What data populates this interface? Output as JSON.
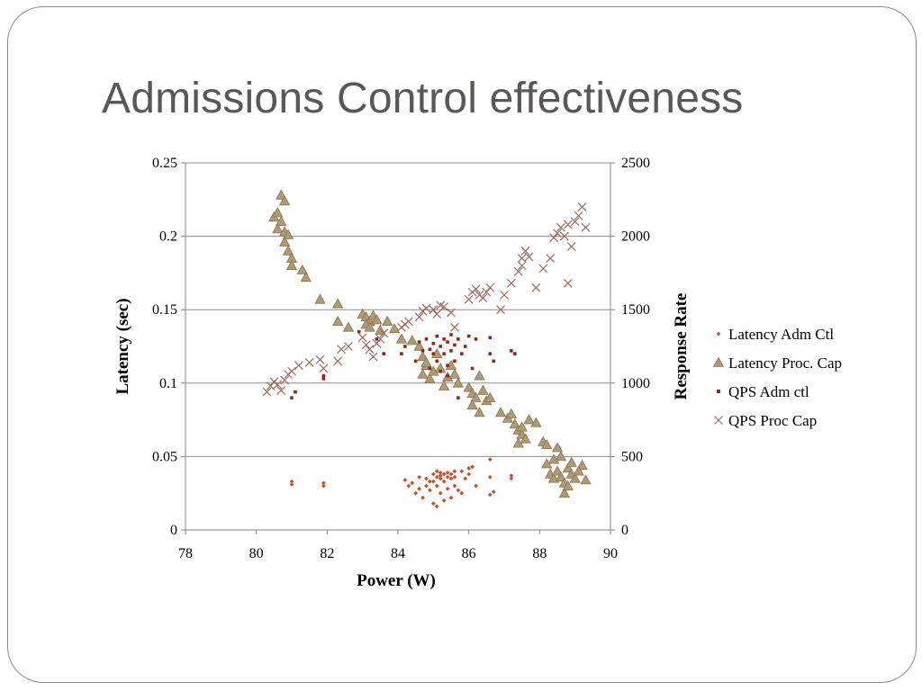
{
  "slide": {
    "title": "Admissions Control effectiveness"
  },
  "colors": {
    "latency_adm": "#c8502a",
    "latency_proc": "#ad9b75",
    "latency_proc_stroke": "#8a7550",
    "qps_adm": "#8b2a1c",
    "qps_proc": "#9c6b60",
    "grid": "#8c8c8c",
    "title": "#5b5756"
  },
  "chart_data": {
    "type": "scatter",
    "xlabel": "Power (W)",
    "ylabel": "Latency (sec)",
    "y2label": "Response Rate",
    "xlim": [
      78,
      90
    ],
    "ylim": [
      0,
      0.25
    ],
    "y2lim": [
      0,
      2500
    ],
    "xticks": [
      "78",
      "80",
      "82",
      "84",
      "86",
      "88",
      "90"
    ],
    "yticks": [
      "0",
      "0.05",
      "0.1",
      "0.15",
      "0.2",
      "0.25"
    ],
    "y2ticks": [
      "0",
      "500",
      "1000",
      "1500",
      "2000",
      "2500"
    ],
    "grid": "horizontal",
    "legend_position": "right",
    "series": [
      {
        "name": "Latency Adm Ctl",
        "axis": "left",
        "marker": "diamond",
        "points": [
          [
            81.0,
            0.031
          ],
          [
            81.0,
            0.033
          ],
          [
            81.9,
            0.03
          ],
          [
            81.9,
            0.032
          ],
          [
            84.2,
            0.034
          ],
          [
            84.3,
            0.03
          ],
          [
            84.4,
            0.032
          ],
          [
            84.5,
            0.025
          ],
          [
            84.6,
            0.028
          ],
          [
            84.7,
            0.022
          ],
          [
            84.8,
            0.035
          ],
          [
            84.8,
            0.03
          ],
          [
            84.9,
            0.027
          ],
          [
            85.0,
            0.038
          ],
          [
            85.0,
            0.033
          ],
          [
            85.0,
            0.018
          ],
          [
            85.1,
            0.036
          ],
          [
            85.1,
            0.03
          ],
          [
            85.1,
            0.04
          ],
          [
            85.2,
            0.037
          ],
          [
            85.2,
            0.035
          ],
          [
            85.2,
            0.025
          ],
          [
            85.3,
            0.038
          ],
          [
            85.3,
            0.033
          ],
          [
            85.3,
            0.02
          ],
          [
            85.4,
            0.036
          ],
          [
            85.4,
            0.039
          ],
          [
            85.4,
            0.028
          ],
          [
            85.5,
            0.038
          ],
          [
            85.5,
            0.035
          ],
          [
            85.5,
            0.022
          ],
          [
            85.6,
            0.036
          ],
          [
            85.6,
            0.03
          ],
          [
            85.7,
            0.027
          ],
          [
            85.8,
            0.04
          ],
          [
            85.8,
            0.025
          ],
          [
            85.9,
            0.035
          ],
          [
            86.0,
            0.042
          ],
          [
            86.0,
            0.038
          ],
          [
            86.1,
            0.043
          ],
          [
            86.2,
            0.03
          ],
          [
            86.6,
            0.048
          ],
          [
            86.6,
            0.036
          ],
          [
            86.6,
            0.024
          ],
          [
            86.7,
            0.026
          ],
          [
            87.2,
            0.035
          ],
          [
            87.2,
            0.037
          ],
          [
            85.1,
            0.016
          ],
          [
            84.9,
            0.033
          ],
          [
            85.6,
            0.04
          ],
          [
            84.6,
            0.036
          ],
          [
            85.2,
            0.039
          ]
        ]
      },
      {
        "name": "Latency Proc. Cap",
        "axis": "left",
        "marker": "triangle",
        "points": [
          [
            80.7,
            0.228
          ],
          [
            80.8,
            0.224
          ],
          [
            80.5,
            0.213
          ],
          [
            80.6,
            0.216
          ],
          [
            80.7,
            0.21
          ],
          [
            80.6,
            0.205
          ],
          [
            80.8,
            0.203
          ],
          [
            80.9,
            0.201
          ],
          [
            80.8,
            0.196
          ],
          [
            80.9,
            0.19
          ],
          [
            81.0,
            0.185
          ],
          [
            81.0,
            0.18
          ],
          [
            81.3,
            0.177
          ],
          [
            81.4,
            0.172
          ],
          [
            81.8,
            0.157
          ],
          [
            82.3,
            0.154
          ],
          [
            82.3,
            0.142
          ],
          [
            82.6,
            0.138
          ],
          [
            83.0,
            0.147
          ],
          [
            83.1,
            0.145
          ],
          [
            83.2,
            0.142
          ],
          [
            83.3,
            0.146
          ],
          [
            83.1,
            0.14
          ],
          [
            83.2,
            0.138
          ],
          [
            83.4,
            0.143
          ],
          [
            83.5,
            0.136
          ],
          [
            83.7,
            0.142
          ],
          [
            83.9,
            0.137
          ],
          [
            84.1,
            0.13
          ],
          [
            84.4,
            0.129
          ],
          [
            84.6,
            0.125
          ],
          [
            84.7,
            0.118
          ],
          [
            84.8,
            0.112
          ],
          [
            84.7,
            0.106
          ],
          [
            84.9,
            0.103
          ],
          [
            84.8,
            0.114
          ],
          [
            85.0,
            0.108
          ],
          [
            85.1,
            0.12
          ],
          [
            85.2,
            0.11
          ],
          [
            85.3,
            0.098
          ],
          [
            85.4,
            0.104
          ],
          [
            85.5,
            0.112
          ],
          [
            85.6,
            0.106
          ],
          [
            85.7,
            0.1
          ],
          [
            86.0,
            0.097
          ],
          [
            86.1,
            0.093
          ],
          [
            86.2,
            0.09
          ],
          [
            86.3,
            0.105
          ],
          [
            86.4,
            0.095
          ],
          [
            86.5,
            0.088
          ],
          [
            86.6,
            0.09
          ],
          [
            86.1,
            0.085
          ],
          [
            86.3,
            0.08
          ],
          [
            86.9,
            0.08
          ],
          [
            87.1,
            0.076
          ],
          [
            87.2,
            0.079
          ],
          [
            87.3,
            0.072
          ],
          [
            87.4,
            0.068
          ],
          [
            87.5,
            0.065
          ],
          [
            87.6,
            0.062
          ],
          [
            87.7,
            0.075
          ],
          [
            87.5,
            0.07
          ],
          [
            87.4,
            0.059
          ],
          [
            87.9,
            0.073
          ],
          [
            88.1,
            0.06
          ],
          [
            88.2,
            0.058
          ],
          [
            88.5,
            0.056
          ],
          [
            88.4,
            0.048
          ],
          [
            88.6,
            0.05
          ],
          [
            88.3,
            0.038
          ],
          [
            88.4,
            0.035
          ],
          [
            88.5,
            0.04
          ],
          [
            88.6,
            0.036
          ],
          [
            88.7,
            0.032
          ],
          [
            88.8,
            0.042
          ],
          [
            88.9,
            0.038
          ],
          [
            89.0,
            0.035
          ],
          [
            88.7,
            0.025
          ],
          [
            88.9,
            0.046
          ],
          [
            89.2,
            0.044
          ],
          [
            89.3,
            0.034
          ],
          [
            89.1,
            0.04
          ],
          [
            88.2,
            0.045
          ],
          [
            88.8,
            0.03
          ]
        ]
      },
      {
        "name": "QPS Adm ctl",
        "axis": "right",
        "marker": "square",
        "points": [
          [
            81.0,
            900
          ],
          [
            81.1,
            940
          ],
          [
            81.9,
            1050
          ],
          [
            81.9,
            1030
          ],
          [
            82.9,
            1350
          ],
          [
            83.4,
            1300
          ],
          [
            83.6,
            1200
          ],
          [
            84.1,
            1200
          ],
          [
            84.2,
            1250
          ],
          [
            84.5,
            1150
          ],
          [
            84.6,
            1280
          ],
          [
            84.7,
            1220
          ],
          [
            84.8,
            1300
          ],
          [
            84.9,
            1100
          ],
          [
            85.0,
            1200
          ],
          [
            85.0,
            1270
          ],
          [
            85.1,
            1150
          ],
          [
            85.1,
            1320
          ],
          [
            85.2,
            1080
          ],
          [
            85.2,
            1250
          ],
          [
            85.3,
            1200
          ],
          [
            85.3,
            1300
          ],
          [
            85.4,
            1120
          ],
          [
            85.4,
            1280
          ],
          [
            85.5,
            1220
          ],
          [
            85.5,
            1330
          ],
          [
            85.6,
            1150
          ],
          [
            85.6,
            1260
          ],
          [
            85.7,
            1300
          ],
          [
            85.8,
            1200
          ],
          [
            85.9,
            1250
          ],
          [
            86.0,
            1320
          ],
          [
            86.1,
            1100
          ],
          [
            86.2,
            1300
          ],
          [
            86.6,
            1310
          ],
          [
            86.6,
            1200
          ],
          [
            86.7,
            1150
          ],
          [
            87.2,
            1220
          ],
          [
            87.3,
            1200
          ],
          [
            85.4,
            1050
          ],
          [
            84.9,
            1230
          ],
          [
            85.7,
            900
          ]
        ]
      },
      {
        "name": "QPS Proc Cap",
        "axis": "right",
        "marker": "cross",
        "points": [
          [
            80.3,
            940
          ],
          [
            80.4,
            980
          ],
          [
            80.5,
            1010
          ],
          [
            80.6,
            990
          ],
          [
            80.7,
            950
          ],
          [
            80.8,
            1020
          ],
          [
            80.9,
            1060
          ],
          [
            81.0,
            1080
          ],
          [
            81.2,
            1120
          ],
          [
            81.5,
            1140
          ],
          [
            81.8,
            1160
          ],
          [
            81.9,
            1100
          ],
          [
            82.3,
            1150
          ],
          [
            82.4,
            1230
          ],
          [
            82.6,
            1250
          ],
          [
            83.0,
            1310
          ],
          [
            83.1,
            1260
          ],
          [
            83.2,
            1230
          ],
          [
            83.3,
            1180
          ],
          [
            83.4,
            1270
          ],
          [
            83.5,
            1300
          ],
          [
            83.6,
            1340
          ],
          [
            84.1,
            1380
          ],
          [
            84.2,
            1400
          ],
          [
            84.3,
            1420
          ],
          [
            84.6,
            1450
          ],
          [
            84.7,
            1490
          ],
          [
            84.8,
            1510
          ],
          [
            85.0,
            1500
          ],
          [
            85.1,
            1470
          ],
          [
            85.2,
            1530
          ],
          [
            85.3,
            1520
          ],
          [
            85.5,
            1480
          ],
          [
            85.6,
            1380
          ],
          [
            86.0,
            1570
          ],
          [
            86.1,
            1620
          ],
          [
            86.2,
            1640
          ],
          [
            86.3,
            1600
          ],
          [
            86.4,
            1580
          ],
          [
            86.5,
            1620
          ],
          [
            86.6,
            1650
          ],
          [
            86.9,
            1500
          ],
          [
            87.0,
            1600
          ],
          [
            87.2,
            1680
          ],
          [
            87.4,
            1760
          ],
          [
            87.5,
            1800
          ],
          [
            87.5,
            1850
          ],
          [
            87.6,
            1900
          ],
          [
            87.7,
            1860
          ],
          [
            87.9,
            1650
          ],
          [
            88.1,
            1780
          ],
          [
            88.3,
            1850
          ],
          [
            88.4,
            1990
          ],
          [
            88.5,
            2020
          ],
          [
            88.6,
            2060
          ],
          [
            88.7,
            2000
          ],
          [
            88.8,
            2080
          ],
          [
            88.8,
            1680
          ],
          [
            88.9,
            1930
          ],
          [
            89.0,
            2100
          ],
          [
            89.1,
            2140
          ],
          [
            89.2,
            2200
          ],
          [
            89.3,
            2060
          ]
        ]
      }
    ]
  }
}
